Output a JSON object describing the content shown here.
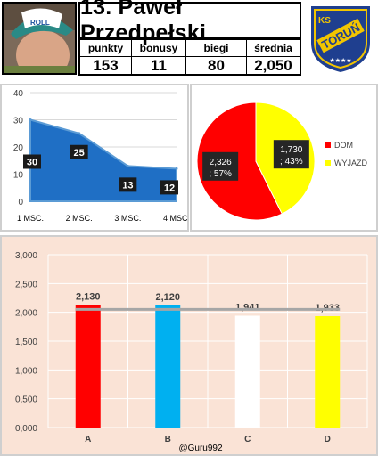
{
  "player": {
    "title": "13. Paweł Przedpełski",
    "stats": [
      {
        "label": "punkty",
        "value": "153"
      },
      {
        "label": "bonusy",
        "value": "11"
      },
      {
        "label": "biegi",
        "value": "80"
      },
      {
        "label": "średnia",
        "value": "2,050"
      }
    ],
    "cap_text": "ROLL",
    "logo_text": {
      "ks": "KS",
      "city": "TORUŃ"
    }
  },
  "colors": {
    "area": "#1f6fc5",
    "dom": "#ff0000",
    "wyjazd": "#ffff00",
    "bar_a": "#ff0000",
    "bar_b": "#00b0f0",
    "bar_c": "#ffffff",
    "bar_d": "#ffff00",
    "bottom_bg": "#fae3d6"
  },
  "chart_data": [
    {
      "type": "area",
      "categories": [
        "1 MSC.",
        "2 MSC.",
        "3 MSC.",
        "4 MSC."
      ],
      "values": [
        30,
        25,
        13,
        12
      ],
      "data_labels": [
        "30",
        "25",
        "13",
        "12"
      ],
      "yticks": [
        "0",
        "10",
        "20",
        "30",
        "40"
      ],
      "ylim": [
        0,
        40
      ],
      "grid": true
    },
    {
      "type": "pie",
      "slices": [
        {
          "name": "DOM",
          "value": 2.326,
          "label": "2,326\n; 57%"
        },
        {
          "name": "WYJAZD",
          "value": 1.73,
          "label": "1,730\n; 43%"
        }
      ],
      "legend": [
        "DOM",
        "WYJAZD"
      ],
      "legend_position": "right"
    },
    {
      "type": "bar",
      "categories": [
        "A",
        "B",
        "C",
        "D"
      ],
      "values": [
        2.13,
        2.12,
        1.941,
        1.933
      ],
      "data_labels": [
        "2,130",
        "2,120",
        "1,941",
        "1,933"
      ],
      "average_line": 2.05,
      "yticks": [
        "0,000",
        "0,500",
        "1,000",
        "1,500",
        "2,000",
        "2,500",
        "3,000"
      ],
      "ylim": [
        0,
        3
      ],
      "grid": true,
      "watermark": "@Guru992"
    }
  ]
}
